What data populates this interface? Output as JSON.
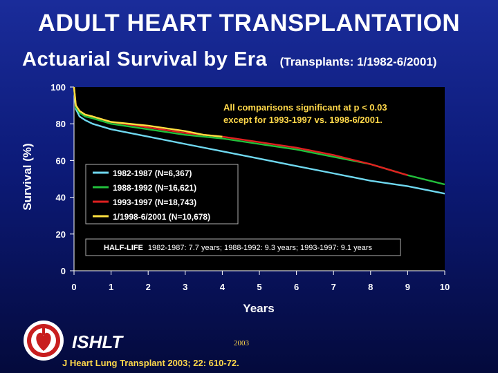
{
  "header": {
    "title": "ADULT HEART TRANSPLANTATION",
    "subtitle": "Actuarial Survival by Era",
    "subtitle_note": "(Transplants: 1/1982-6/2001)"
  },
  "chart_data": {
    "type": "line",
    "xlabel": "Years",
    "ylabel": "Survival (%)",
    "xlim": [
      0,
      10
    ],
    "ylim": [
      0,
      100
    ],
    "xticks": [
      "0",
      "1",
      "2",
      "3",
      "4",
      "5",
      "6",
      "7",
      "8",
      "9",
      "10"
    ],
    "yticks": [
      "0",
      "20",
      "40",
      "60",
      "80",
      "100"
    ],
    "grid": false,
    "legend_position": "left-middle",
    "series": [
      {
        "name": "1982-1987 (N=6,367)",
        "color": "#6fd8f0",
        "x": [
          0,
          0.05,
          0.15,
          0.3,
          0.5,
          1,
          2,
          3,
          4,
          5,
          6,
          7,
          8,
          9,
          10
        ],
        "y": [
          100,
          88,
          84,
          82,
          80,
          77,
          73,
          69,
          65,
          61,
          57,
          53,
          49,
          46,
          42
        ]
      },
      {
        "name": "1988-1992 (N=16,621)",
        "color": "#22c03c",
        "x": [
          0,
          0.05,
          0.15,
          0.3,
          0.5,
          1,
          2,
          3,
          4,
          5,
          6,
          7,
          8,
          9,
          10
        ],
        "y": [
          100,
          89,
          86,
          84,
          83,
          80,
          77,
          74,
          72,
          69,
          66,
          62,
          58,
          52,
          47
        ]
      },
      {
        "name": "1993-1997 (N=18,743)",
        "color": "#e02020",
        "x": [
          0,
          0.05,
          0.15,
          0.3,
          0.5,
          1,
          2,
          3,
          4,
          5,
          6,
          7,
          8,
          9
        ],
        "y": [
          100,
          90,
          87,
          85,
          84,
          81,
          78,
          75,
          73,
          70,
          67,
          63,
          58,
          52
        ]
      },
      {
        "name": "1/1998-6/2001 (N=10,678)",
        "color": "#ffe040",
        "x": [
          0,
          0.05,
          0.15,
          0.3,
          0.5,
          1,
          2,
          3,
          3.5,
          4
        ],
        "y": [
          100,
          90,
          87,
          85,
          84,
          81,
          79,
          76,
          74,
          73
        ]
      }
    ],
    "annotation": [
      "All comparisons significant at p < 0.03",
      "except for 1993-1997 vs. 1998-6/2001."
    ],
    "halflife": {
      "label": "HALF-LIFE",
      "text": "1982-1987: 7.7 years; 1988-1992: 9.3 years; 1993-1997: 9.1 years"
    }
  },
  "footer": {
    "ishlt": "ISHLT",
    "year": "2003",
    "citation": "J Heart Lung Transplant 2003; 22: 610-72."
  },
  "colors": {
    "background_top": "#1a2c9a",
    "background_bottom": "#040a3c",
    "plot_background": "#000000",
    "annotation_text": "#ffd84a",
    "citation_text": "#ffd84a"
  }
}
